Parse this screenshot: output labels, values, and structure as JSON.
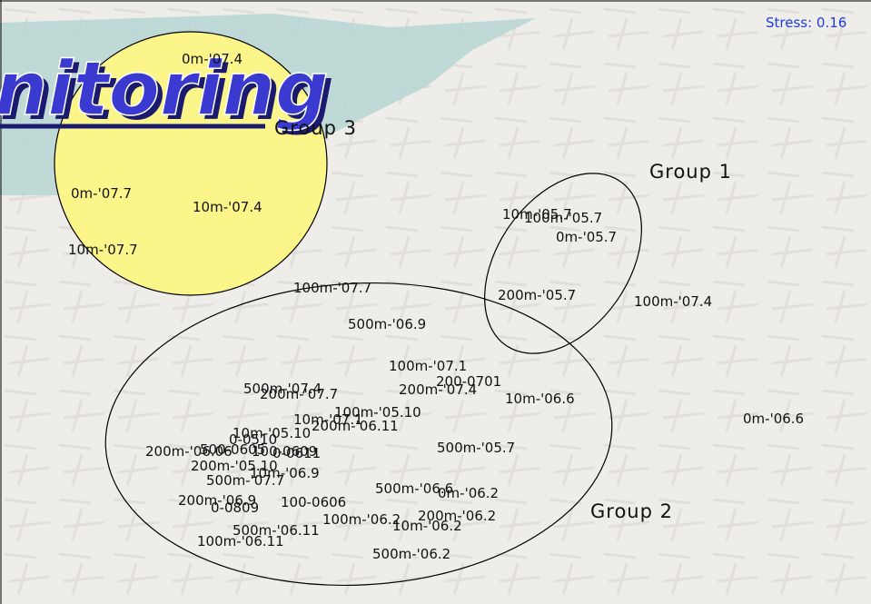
{
  "stress": "Stress: 0.16",
  "banner": "nitoring",
  "groups": [
    "Group 3",
    "Group 1",
    "Group 2"
  ],
  "labels": [
    "0m-'07.4",
    "0m-'07.7",
    "10m-'07.4",
    "10m-'07.7",
    "10m-'05.7",
    "100m-'05.7",
    "0m-'05.7",
    "200m-'05.7",
    "100m-'07.4",
    "100m-'07.7",
    "500m-'06.9",
    "100m-'07.1",
    "200-0701",
    "200m-'07.4",
    "10m-'06.6",
    "500m-'07.4",
    "200m-'07.7",
    "100m-'05.10",
    "10m-'07.1",
    "200m-'06.11",
    "0m-'06.6",
    "10m-'05.10",
    "0-0510",
    "500m-'05.7",
    "200m-'06.06",
    "500-0605",
    "100-0609",
    "0-0611",
    "200m-'05.10",
    "500m-'07.7",
    "10m-'06.9",
    "500m-'06.6",
    "0m-'06.2",
    "200m-'06.9",
    "0-0809",
    "100-0606",
    "100m-'06.2",
    "200m-'06.2",
    "10m-'06.2",
    "500m-'06.11",
    "100m-'06.11",
    "500m-'06.2"
  ]
}
